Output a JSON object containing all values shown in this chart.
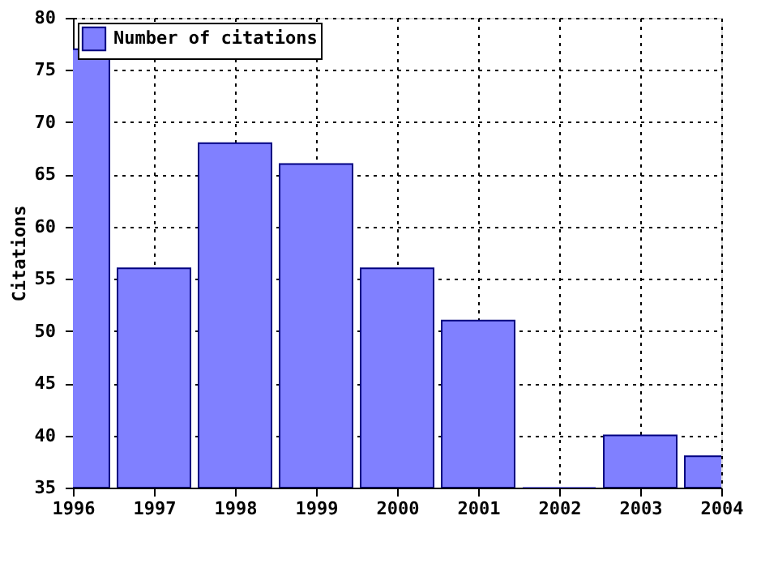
{
  "chart_data": {
    "type": "bar",
    "ylabel": "Citations",
    "x": [
      1996,
      1997,
      1998,
      1999,
      2000,
      2001,
      2002,
      2003,
      2004
    ],
    "series": [
      {
        "name": "Number of citations",
        "color": "#8080ff",
        "values": [
          77,
          56,
          68,
          66,
          56,
          51,
          35,
          40,
          38
        ]
      }
    ],
    "xlim": [
      1996,
      2004
    ],
    "xticks": [
      1996,
      1997,
      1998,
      1999,
      2000,
      2001,
      2002,
      2003,
      2004
    ],
    "ylim": [
      35,
      80
    ],
    "yticks": [
      35,
      40,
      45,
      50,
      55,
      60,
      65,
      70,
      75,
      80
    ],
    "grid": true,
    "legend": "top left"
  }
}
